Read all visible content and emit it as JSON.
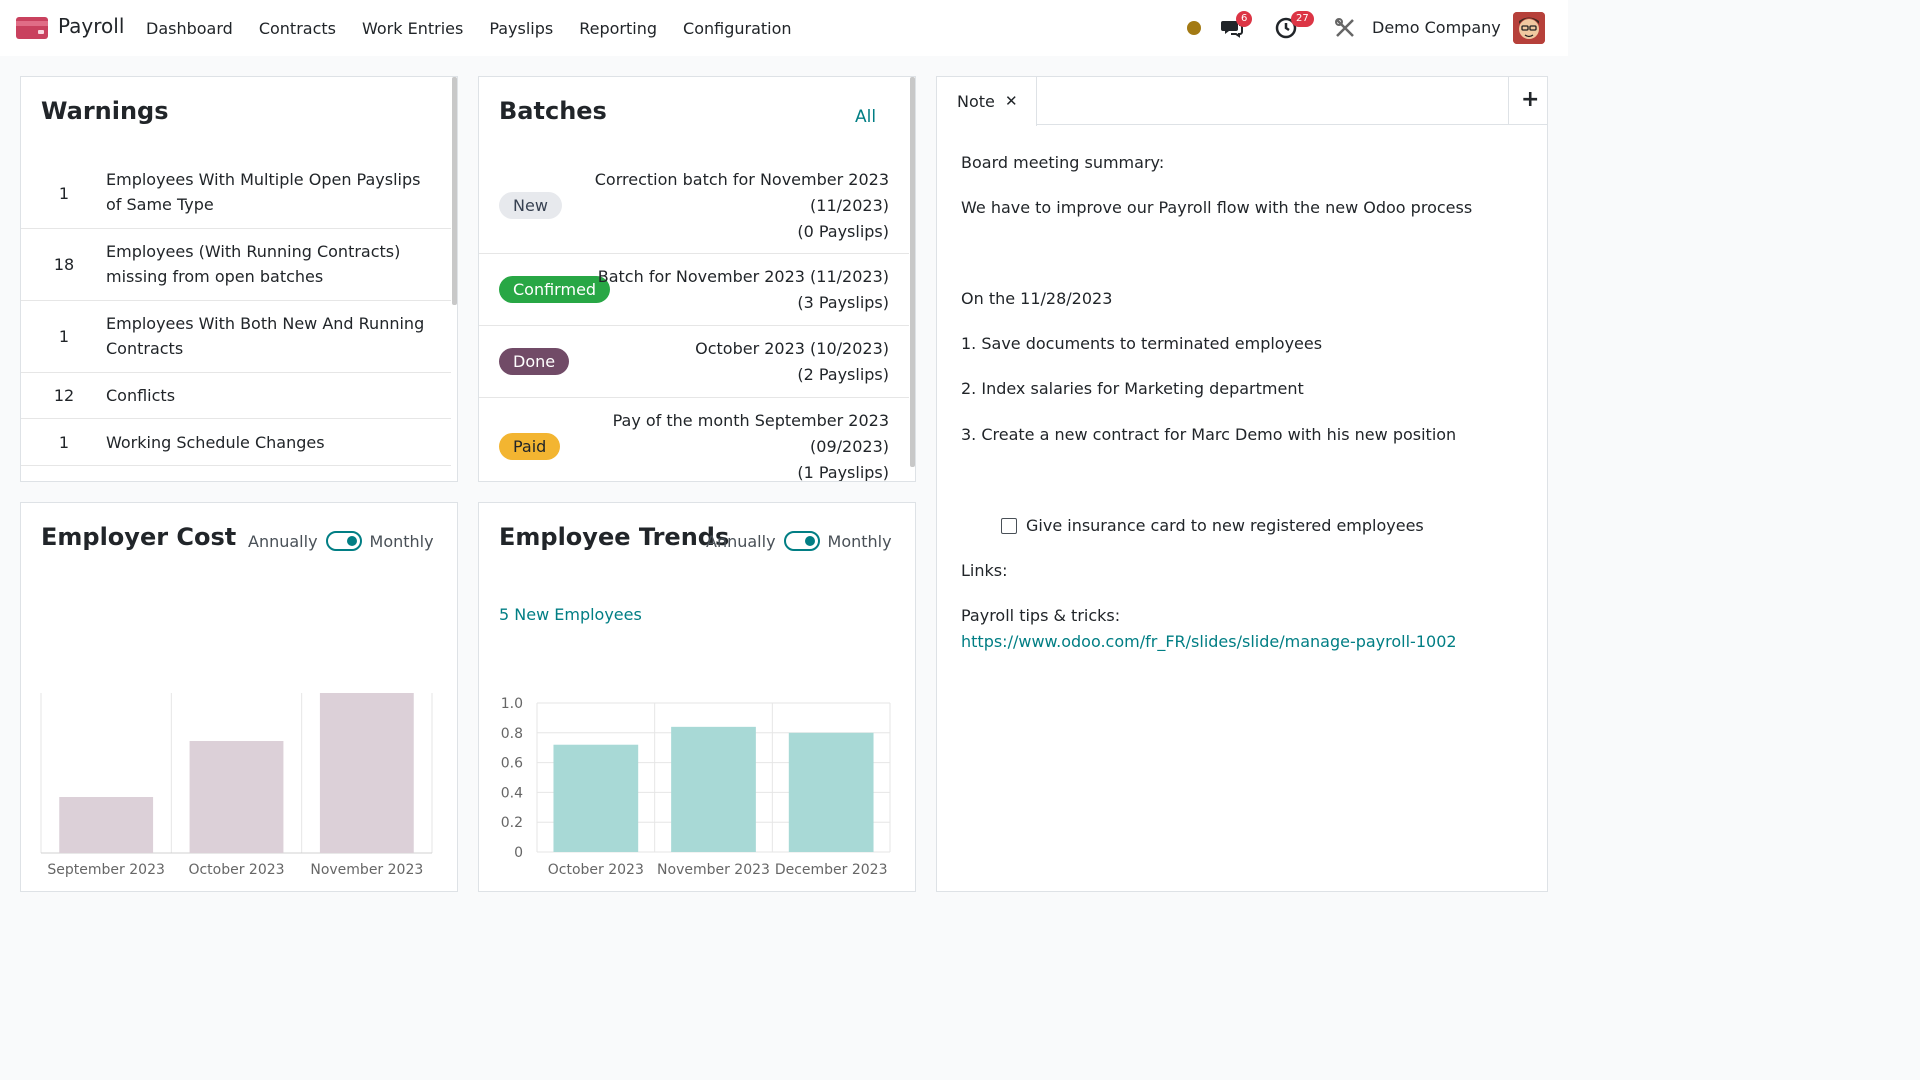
{
  "navbar": {
    "app_title": "Payroll",
    "menu": [
      "Dashboard",
      "Contracts",
      "Work Entries",
      "Payslips",
      "Reporting",
      "Configuration"
    ],
    "messages_badge": "6",
    "activities_badge": "27",
    "company": "Demo Company",
    "status_color": "#a37a14"
  },
  "warnings": {
    "title": "Warnings",
    "items": [
      {
        "count": "1",
        "label": "Employees With Multiple Open Payslips of Same Type"
      },
      {
        "count": "18",
        "label": "Employees (With Running Contracts) missing from open batches"
      },
      {
        "count": "1",
        "label": "Employees With Both New And Running Contracts"
      },
      {
        "count": "12",
        "label": "Conflicts"
      },
      {
        "count": "1",
        "label": "Working Schedule Changes"
      }
    ]
  },
  "batches": {
    "title": "Batches",
    "all_label": "All",
    "items": [
      {
        "status": "New",
        "status_color": "#e7e9ed",
        "status_text_color": "#374151",
        "lines": [
          "Correction batch for November 2023",
          "(11/2023)",
          "(0 Payslips)"
        ]
      },
      {
        "status": "Confirmed",
        "status_color": "#28a745",
        "status_text_color": "#ffffff",
        "lines": [
          "Batch for November 2023 (11/2023)",
          "(3 Payslips)"
        ]
      },
      {
        "status": "Done",
        "status_color": "#714b67",
        "status_text_color": "#ffffff",
        "lines": [
          "October 2023 (10/2023)",
          "(2 Payslips)"
        ]
      },
      {
        "status": "Paid",
        "status_color": "#f3b531",
        "status_text_color": "#212529",
        "lines": [
          "Pay of the month September 2023",
          "(09/2023)",
          "(1 Payslips)"
        ]
      }
    ]
  },
  "employer_cost": {
    "title": "Employer Cost",
    "annually": "Annually",
    "monthly": "Monthly"
  },
  "employee_trends": {
    "title": "Employee Trends",
    "annually": "Annually",
    "monthly": "Monthly",
    "new_employees": "5 New Employees"
  },
  "note": {
    "tab_label": "Note",
    "lines": [
      "Board meeting summary:",
      "We have to improve our Payroll flow with the new Odoo process",
      "On the 11/28/2023",
      "1. Save documents to terminated employees",
      "2. Index salaries for Marketing department",
      "3. Create a new contract for Marc Demo with his new position"
    ],
    "checkbox_label": "Give insurance card to new registered employees",
    "links_label": "Links:",
    "tips_label": "Payroll tips & tricks:",
    "tips_url": "https://www.odoo.com/fr_FR/slides/slide/manage-payroll-1002"
  },
  "chart_data": [
    {
      "type": "bar",
      "categories": [
        "September 2023",
        "October 2023",
        "November 2023"
      ],
      "values": [
        0.35,
        0.7,
        1.0
      ],
      "color": "#dcd0d8"
    },
    {
      "type": "bar",
      "categories": [
        "October 2023",
        "November 2023",
        "December 2023"
      ],
      "values": [
        0.72,
        0.84,
        0.8
      ],
      "ylim": [
        0,
        1.0
      ],
      "yticks": [
        "0",
        "0.2",
        "0.4",
        "0.6",
        "0.8",
        "1.0"
      ],
      "color": "#a8d9d6"
    }
  ]
}
